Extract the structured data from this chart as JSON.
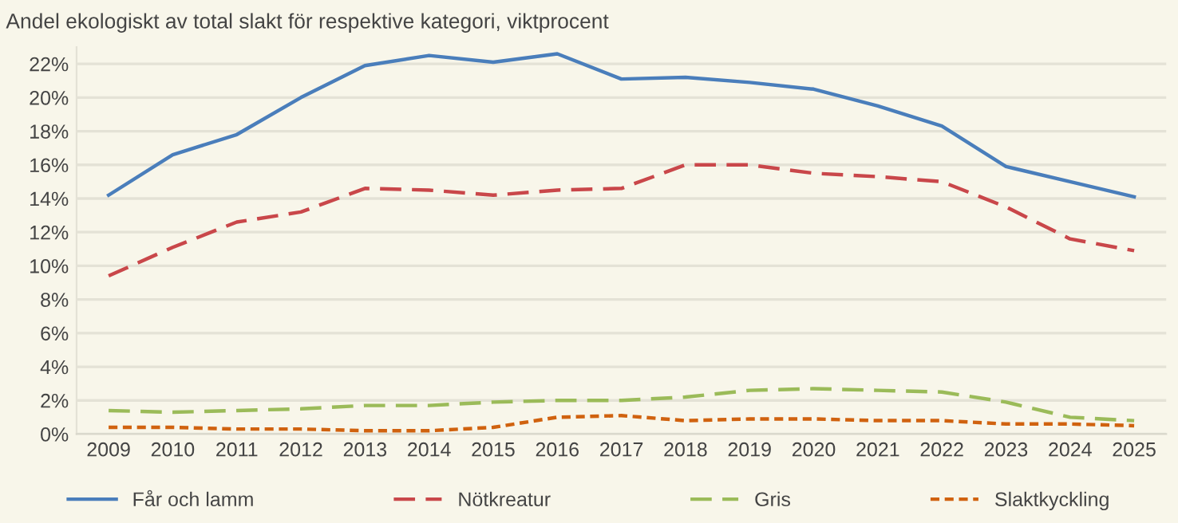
{
  "chart_data": {
    "type": "line",
    "title": "Andel ekologiskt av total slakt för respektive kategori, viktprocent",
    "categories": [
      "2009",
      "2010",
      "2011",
      "2012",
      "2013",
      "2014",
      "2015",
      "2016",
      "2017",
      "2018",
      "2019",
      "2020",
      "2021",
      "2022",
      "2023",
      "2024",
      "2025"
    ],
    "series": [
      {
        "name": "Får och lamm",
        "color": "#4a7ebb",
        "line_style": "solid",
        "values": [
          14.2,
          16.6,
          17.8,
          20.0,
          21.9,
          22.5,
          22.1,
          22.6,
          21.1,
          21.2,
          20.9,
          20.5,
          19.5,
          18.3,
          15.9,
          15.0,
          14.1
        ]
      },
      {
        "name": "Nötkreatur",
        "color": "#c9474a",
        "line_style": "dashed",
        "values": [
          9.4,
          11.1,
          12.6,
          13.2,
          14.6,
          14.5,
          14.2,
          14.5,
          14.6,
          16.0,
          16.0,
          15.5,
          15.3,
          15.0,
          13.5,
          11.6,
          10.9
        ]
      },
      {
        "name": "Gris",
        "color": "#9bbb59",
        "line_style": "dashed",
        "values": [
          1.4,
          1.3,
          1.4,
          1.5,
          1.7,
          1.7,
          1.9,
          2.0,
          2.0,
          2.2,
          2.6,
          2.7,
          2.6,
          2.5,
          1.9,
          1.0,
          0.8
        ]
      },
      {
        "name": "Slaktkyckling",
        "color": "#d0620f",
        "line_style": "dotted",
        "values": [
          0.4,
          0.4,
          0.3,
          0.3,
          0.2,
          0.2,
          0.4,
          1.0,
          1.1,
          0.8,
          0.9,
          0.9,
          0.8,
          0.8,
          0.6,
          0.6,
          0.5
        ]
      }
    ],
    "ylim": [
      0,
      23
    ],
    "yticks": [
      {
        "value": 0,
        "label": "0%"
      },
      {
        "value": 2,
        "label": "2%"
      },
      {
        "value": 4,
        "label": "4%"
      },
      {
        "value": 6,
        "label": "6%"
      },
      {
        "value": 8,
        "label": "8%"
      },
      {
        "value": 10,
        "label": "10%"
      },
      {
        "value": 12,
        "label": "12%"
      },
      {
        "value": 14,
        "label": "14%"
      },
      {
        "value": 16,
        "label": "16%"
      },
      {
        "value": 18,
        "label": "18%"
      },
      {
        "value": 20,
        "label": "20%"
      },
      {
        "value": 22,
        "label": "22%"
      }
    ],
    "grid": "y",
    "legend": "bottom",
    "marker": "none"
  }
}
